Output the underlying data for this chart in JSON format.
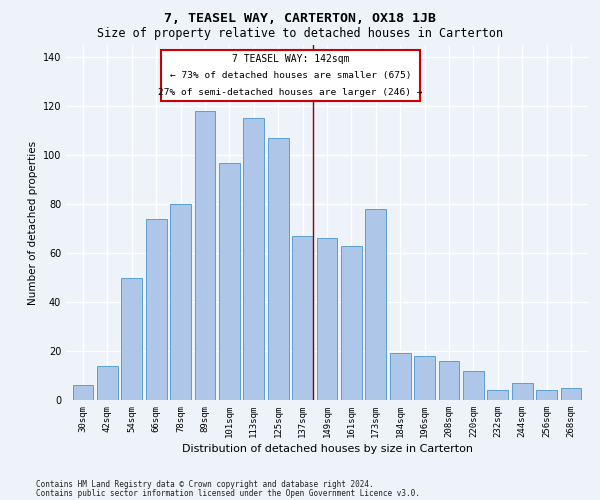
{
  "title": "7, TEASEL WAY, CARTERTON, OX18 1JB",
  "subtitle": "Size of property relative to detached houses in Carterton",
  "xlabel": "Distribution of detached houses by size in Carterton",
  "ylabel": "Number of detached properties",
  "footnote1": "Contains HM Land Registry data © Crown copyright and database right 2024.",
  "footnote2": "Contains public sector information licensed under the Open Government Licence v3.0.",
  "bar_labels": [
    "30sqm",
    "42sqm",
    "54sqm",
    "66sqm",
    "78sqm",
    "89sqm",
    "101sqm",
    "113sqm",
    "125sqm",
    "137sqm",
    "149sqm",
    "161sqm",
    "173sqm",
    "184sqm",
    "196sqm",
    "208sqm",
    "220sqm",
    "232sqm",
    "244sqm",
    "256sqm",
    "268sqm"
  ],
  "bar_values": [
    6,
    14,
    50,
    74,
    80,
    118,
    97,
    115,
    107,
    67,
    66,
    63,
    78,
    19,
    18,
    16,
    12,
    4,
    7,
    4,
    5
  ],
  "bar_color": "#aec6e8",
  "bar_edge_color": "#5a9fd4",
  "property_line_color": "#8b0000",
  "annotation_title": "7 TEASEL WAY: 142sqm",
  "annotation_line2": "← 73% of detached houses are smaller (675)",
  "annotation_line3": "27% of semi-detached houses are larger (246) →",
  "annotation_box_color": "#ffffff",
  "annotation_box_edge": "#cc0000",
  "ylim": [
    0,
    145
  ],
  "background_color": "#eef2f9",
  "grid_color": "#ffffff",
  "title_fontsize": 9.5,
  "subtitle_fontsize": 8.5,
  "axis_label_fontsize": 7.5,
  "tick_fontsize": 6.5,
  "footnote_fontsize": 5.5
}
